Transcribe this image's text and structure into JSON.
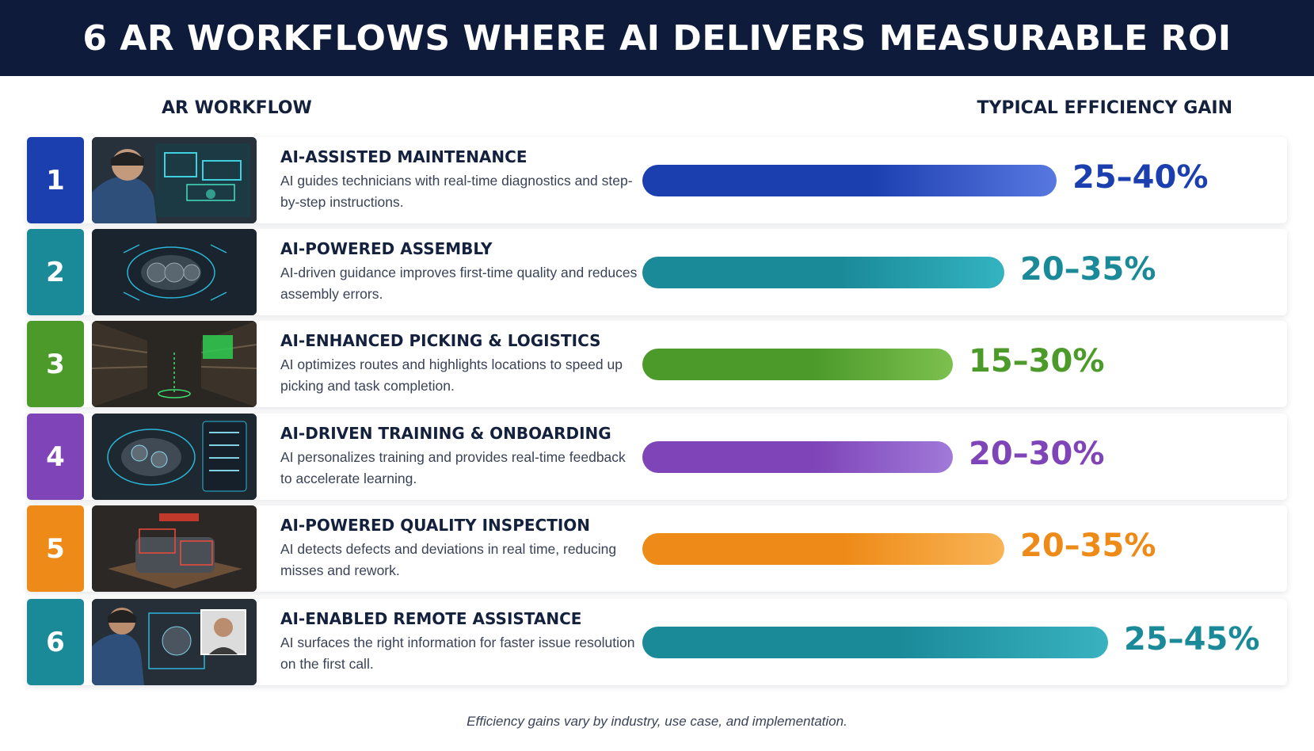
{
  "title": "6 AR WORKFLOWS WHERE AI DELIVERS MEASURABLE ROI",
  "col_left": "AR WORKFLOW",
  "col_right": "TYPICAL EFFICIENCY GAIN",
  "footnote": "Efficiency gains vary by industry, use case, and implementation.",
  "chart_data": {
    "type": "bar",
    "orientation": "horizontal",
    "categories": [
      "AI-ASSISTED MAINTENANCE",
      "AI-POWERED ASSEMBLY",
      "AI-ENHANCED PICKING & LOGISTICS",
      "AI-DRIVEN TRAINING & ONBOARDING",
      "AI-POWERED QUALITY INSPECTION",
      "AI-ENABLED REMOTE ASSISTANCE"
    ],
    "ranges_percent": [
      [
        25,
        40
      ],
      [
        20,
        35
      ],
      [
        15,
        30
      ],
      [
        20,
        30
      ],
      [
        20,
        35
      ],
      [
        25,
        45
      ]
    ],
    "labels": [
      "25–40%",
      "20–35%",
      "15–30%",
      "20–30%",
      "20–35%",
      "25–45%"
    ],
    "grid": false,
    "legend": "none"
  },
  "rows": [
    {
      "num": "1",
      "title": "AI-ASSISTED MAINTENANCE",
      "desc": "AI guides technicians with real-time diagnostics and step-by-step instructions.",
      "pct": "25–40%",
      "color": "#1c3fb0",
      "color_light": "#5878e0",
      "image": "technician-ar-headset-image"
    },
    {
      "num": "2",
      "title": "AI-POWERED ASSEMBLY",
      "desc": "AI-driven guidance improves first-time quality and reduces assembly errors.",
      "pct": "20–35%",
      "color": "#1a8a99",
      "color_light": "#34b3c0",
      "image": "engine-hologram-image"
    },
    {
      "num": "3",
      "title": "AI-ENHANCED PICKING & LOGISTICS",
      "desc": "AI optimizes routes and highlights locations to speed up picking and task completion.",
      "pct": "15–30%",
      "color": "#4c9a2a",
      "color_light": "#7cc04e",
      "image": "warehouse-shelves-image"
    },
    {
      "num": "4",
      "title": "AI-DRIVEN TRAINING & ONBOARDING",
      "desc": "AI personalizes training and provides real-time feedback to accelerate learning.",
      "pct": "20–30%",
      "color": "#7e44b8",
      "color_light": "#a07ad9",
      "image": "training-hologram-image"
    },
    {
      "num": "5",
      "title": "AI-POWERED QUALITY INSPECTION",
      "desc": "AI detects defects and deviations in real time, reducing misses and rework.",
      "pct": "20–35%",
      "color": "#ee8a17",
      "color_light": "#f8b456",
      "image": "inspection-defects-image"
    },
    {
      "num": "6",
      "title": "AI-ENABLED REMOTE ASSISTANCE",
      "desc": "AI surfaces the right information for faster issue resolution on the first call.",
      "pct": "25–45%",
      "color": "#1a8a99",
      "color_light": "#39b2c0",
      "image": "remote-expert-video-call-image"
    }
  ]
}
